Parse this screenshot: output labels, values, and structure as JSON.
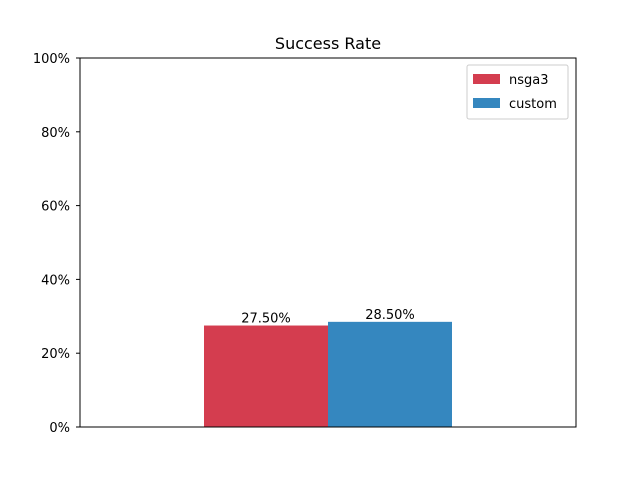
{
  "chart_data": {
    "type": "bar",
    "title": "Success Rate",
    "xlabel": "",
    "ylabel": "",
    "ylim": [
      0,
      100
    ],
    "y_ticks": [
      0,
      20,
      40,
      60,
      80,
      100
    ],
    "y_tick_labels": [
      "0%",
      "20%",
      "40%",
      "60%",
      "80%",
      "100%"
    ],
    "grid": false,
    "legend_position": "top-right",
    "series": [
      {
        "name": "nsga3",
        "value": 27.5,
        "label": "27.50%",
        "color": "#d43d4f"
      },
      {
        "name": "custom",
        "value": 28.5,
        "label": "28.50%",
        "color": "#3587bf"
      }
    ]
  }
}
